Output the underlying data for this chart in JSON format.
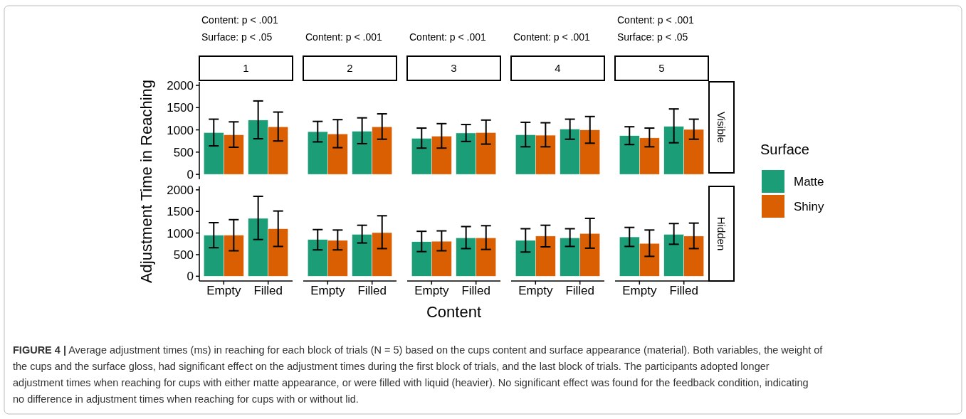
{
  "chart_data": [
    {
      "type": "bar",
      "y2label": "Visible",
      "categories": [
        null,
        null,
        null,
        null,
        null,
        null,
        null,
        null,
        null,
        null
      ],
      "series": [
        {
          "name": "Matte",
          "color": "#1b9e77",
          "values": [
            940,
            1220,
            960,
            970,
            810,
            930,
            890,
            1020,
            870,
            1080
          ],
          "errors": [
            [
              640,
              1240
            ],
            [
              800,
              1650
            ],
            [
              730,
              1190
            ],
            [
              690,
              1270
            ],
            [
              590,
              1040
            ],
            [
              740,
              1120
            ],
            [
              620,
              1170
            ],
            [
              790,
              1240
            ],
            [
              670,
              1070
            ],
            [
              710,
              1470
            ]
          ]
        },
        {
          "name": "Shiny",
          "color": "#d95f02",
          "values": [
            890,
            1070,
            910,
            1070,
            860,
            940,
            880,
            1000,
            820,
            1010
          ],
          "errors": [
            [
              610,
              1180
            ],
            [
              750,
              1400
            ],
            [
              600,
              1230
            ],
            [
              790,
              1360
            ],
            [
              590,
              1140
            ],
            [
              680,
              1220
            ],
            [
              620,
              1160
            ],
            [
              700,
              1300
            ],
            [
              620,
              1040
            ],
            [
              790,
              1240
            ]
          ]
        }
      ],
      "ylim": [
        -110,
        2080
      ],
      "yticks": [
        0,
        500,
        1000,
        1500,
        2000
      ],
      "tick_labels": "y",
      "ylabel": "Adjustment Time in Reaching",
      "legend": "right",
      "legend_title": "Surface",
      "annotations": [
        "1",
        "2",
        "3",
        "4",
        "5",
        "Content: p < .001",
        "Surface: p < .05",
        "Content: p < .001",
        "Content: p < .001",
        "Content: p < .001",
        "Content: p < .001",
        "Surface: p < .05"
      ]
    },
    {
      "type": "bar",
      "y2label": "Hidden",
      "xlabel": "Content",
      "categories": [
        "Empty",
        "Filled",
        "Empty",
        "Filled",
        "Empty",
        "Filled",
        "Empty",
        "Filled",
        "Empty",
        "Filled"
      ],
      "series": [
        {
          "color": "#1b9e77",
          "values": [
            950,
            1340,
            850,
            970,
            800,
            890,
            830,
            890,
            910,
            970
          ],
          "errors": [
            [
              660,
              1240
            ],
            [
              850,
              1850
            ],
            [
              610,
              1080
            ],
            [
              770,
              1180
            ],
            [
              570,
              1040
            ],
            [
              640,
              1150
            ],
            [
              560,
              1100
            ],
            [
              690,
              1100
            ],
            [
              690,
              1130
            ],
            [
              740,
              1220
            ]
          ]
        },
        {
          "color": "#d95f02",
          "values": [
            950,
            1100,
            830,
            1010,
            810,
            890,
            930,
            990,
            760,
            930
          ],
          "errors": [
            [
              590,
              1310
            ],
            [
              690,
              1510
            ],
            [
              610,
              1070
            ],
            [
              640,
              1400
            ],
            [
              590,
              1050
            ],
            [
              620,
              1170
            ],
            [
              680,
              1180
            ],
            [
              650,
              1340
            ],
            [
              460,
              1070
            ],
            [
              640,
              1230
            ]
          ]
        }
      ],
      "ylim": [
        -110,
        2080
      ],
      "yticks": [
        0,
        500,
        1000,
        1500,
        2000
      ],
      "annotations": [
        "FIGURE 4 | Average adjustment times (ms) in reaching for each block of trials (N = 5) based on the cups content and surface appearance (material). Both variables, the weight of the cups and the surface gloss, had significant effect on the adjustment times during the first block of trials, and the last block of trials. The participants adopted longer adjustment times when reaching for cups with either matte appearance, or were filled with liquid (heavier). No significant effect was found for the feedback condition, indicating no difference in adjustment times when reaching for cups with or without lid."
      ]
    }
  ]
}
